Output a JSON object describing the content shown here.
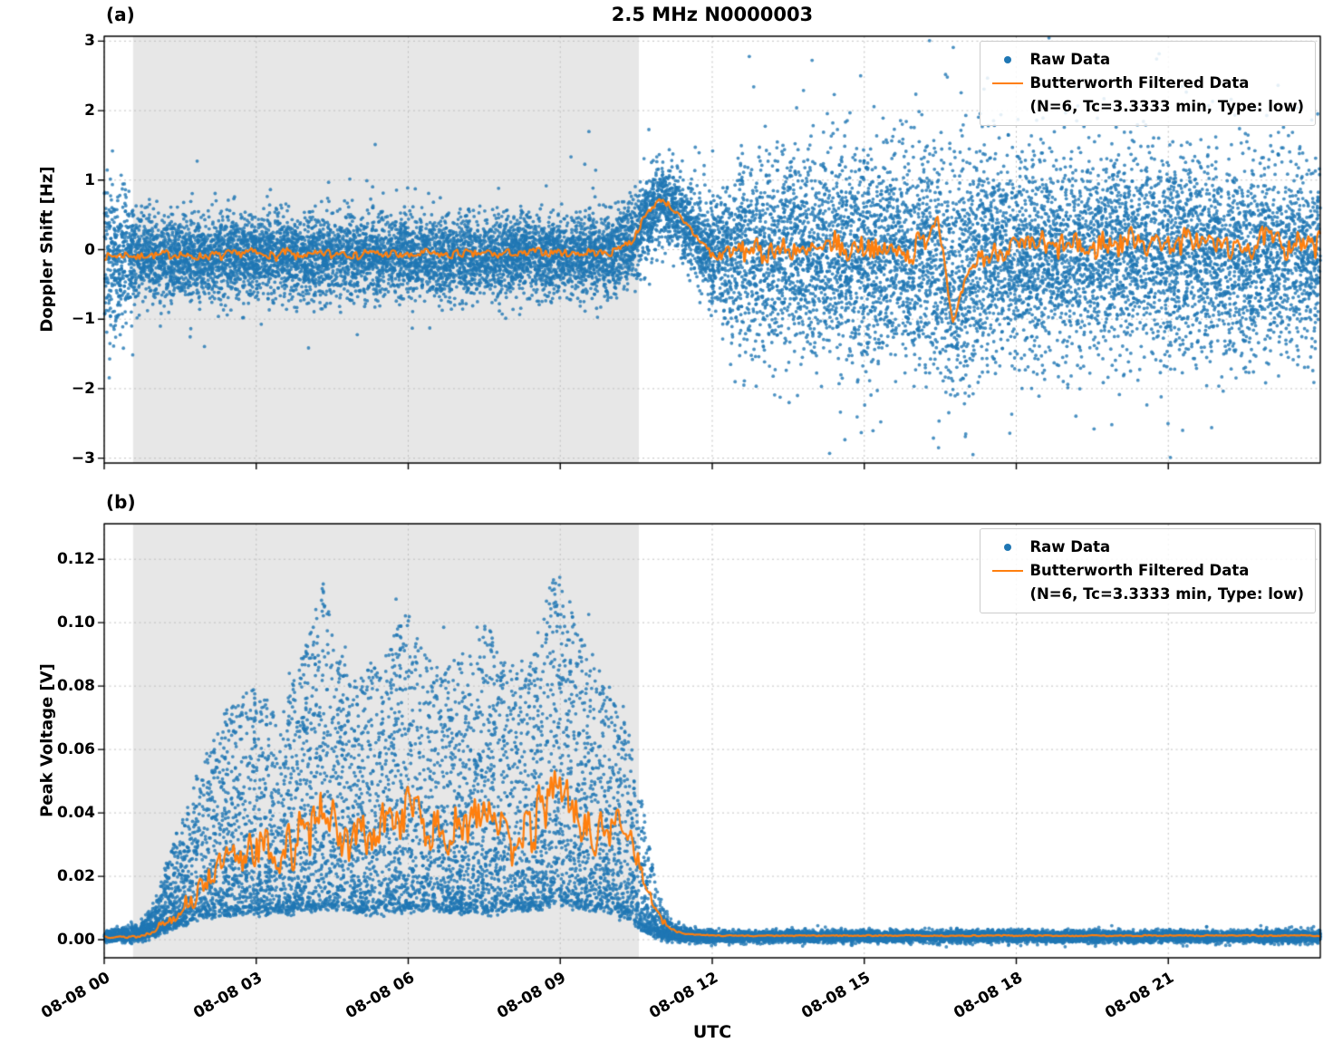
{
  "figure": {
    "title": "2.5 MHz N0000003",
    "xlabel": "UTC",
    "background": "#ffffff",
    "shade_color": "#e7e7e7",
    "grid_color": "#bbbbbb",
    "colors": {
      "raw": "#1f77b4",
      "filtered": "#ff7f0e"
    }
  },
  "legend": {
    "raw_label": "Raw Data",
    "filtered_label": "Butterworth Filtered Data",
    "filtered_sublabel": "(N=6, Tc=3.3333 min, Type: low)"
  },
  "chart_data": [
    {
      "panel": "(a)",
      "type": "scatter",
      "title": "2.5 MHz N0000003",
      "ylabel": "Doppler Shift [Hz]",
      "ylim": [
        -3,
        3
      ],
      "ylim_render": [
        -3.07,
        3.07
      ],
      "yticks": [
        -3,
        -2,
        -1,
        0,
        1,
        2,
        3
      ],
      "ytick_labels": [
        "−3",
        "−2",
        "−1",
        "0",
        "1",
        "2",
        "3"
      ],
      "xlim_hours": [
        0,
        24
      ],
      "xtick_hours": [
        0,
        3,
        6,
        9,
        12,
        15,
        18,
        21
      ],
      "xtick_labels": [
        "08-08 00",
        "08-08 03",
        "08-08 06",
        "08-08 09",
        "08-08 12",
        "08-08 15",
        "08-08 18",
        "08-08 21"
      ],
      "show_xtick_labels": false,
      "shade_hours": [
        0.57,
        10.55
      ],
      "grid": true,
      "legend_position": "upper right",
      "series": [
        {
          "name": "Raw Data",
          "style": "scatter",
          "color": "#1f77b4"
        },
        {
          "name": "Butterworth Filtered Data (N=6, Tc=3.3333 min, Type: low)",
          "style": "line",
          "color": "#ff7f0e"
        }
      ],
      "raw": {
        "model": "gauss",
        "seed": 101,
        "points": 16000,
        "hours": [
          0,
          0.3,
          0.6,
          1,
          2,
          3,
          4,
          5,
          6,
          7,
          8,
          9,
          10,
          10.4,
          10.7,
          11,
          11.2,
          11.5,
          11.8,
          12.1,
          12.5,
          13,
          14,
          15,
          16,
          16.4,
          16.75,
          17.1,
          17.5,
          18,
          19,
          20,
          21,
          22,
          23,
          24
        ],
        "center": [
          -0.2,
          -0.15,
          -0.1,
          -0.1,
          -0.1,
          -0.08,
          -0.1,
          -0.08,
          -0.1,
          -0.1,
          -0.08,
          -0.08,
          -0.05,
          0.1,
          0.45,
          0.7,
          0.6,
          0.4,
          0.05,
          -0.05,
          -0.1,
          -0.1,
          -0.1,
          -0.1,
          -0.1,
          -0.1,
          -0.4,
          -0.3,
          -0.15,
          -0.1,
          -0.1,
          -0.05,
          -0.05,
          -0.1,
          -0.1,
          -0.1
        ],
        "std": [
          0.6,
          0.5,
          0.35,
          0.3,
          0.3,
          0.28,
          0.3,
          0.28,
          0.28,
          0.28,
          0.28,
          0.28,
          0.3,
          0.3,
          0.3,
          0.28,
          0.3,
          0.3,
          0.32,
          0.4,
          0.6,
          0.7,
          0.72,
          0.72,
          0.72,
          0.85,
          0.88,
          0.8,
          0.75,
          0.72,
          0.7,
          0.7,
          0.72,
          0.7,
          0.7,
          0.7
        ]
      },
      "filtered": {
        "seeds": [
          7,
          11
        ],
        "hours": [
          0,
          1,
          2,
          3,
          4,
          5,
          6,
          7,
          8,
          9,
          10,
          10.4,
          10.7,
          11,
          11.2,
          11.5,
          11.8,
          12.1,
          12.5,
          13,
          14,
          15,
          16,
          16.2,
          16.45,
          16.6,
          16.75,
          17,
          17.3,
          17.6,
          18,
          19,
          20,
          21,
          22,
          23,
          24
        ],
        "center": [
          -0.1,
          -0.08,
          -0.08,
          -0.06,
          -0.08,
          -0.05,
          -0.07,
          -0.06,
          -0.05,
          -0.05,
          -0.03,
          0.12,
          0.5,
          0.72,
          0.6,
          0.35,
          0.05,
          -0.08,
          -0.05,
          0,
          0,
          0.02,
          0,
          0.1,
          0.45,
          -0.3,
          -1.05,
          -0.45,
          -0.05,
          0,
          0.05,
          0.05,
          0.1,
          0.15,
          0.05,
          0.1,
          0.05
        ],
        "wiggle": [
          0.07,
          0.07,
          0.08,
          0.08,
          0.08,
          0.08,
          0.07,
          0.07,
          0.07,
          0.07,
          0.06,
          0.06,
          0.06,
          0.05,
          0.07,
          0.08,
          0.1,
          0.12,
          0.18,
          0.2,
          0.22,
          0.22,
          0.2,
          0.18,
          0.12,
          0.1,
          0.06,
          0.1,
          0.18,
          0.2,
          0.2,
          0.22,
          0.22,
          0.2,
          0.2,
          0.2,
          0.2
        ]
      }
    },
    {
      "panel": "(b)",
      "type": "scatter",
      "ylabel": "Peak Voltage [V]",
      "ylim": [
        0,
        0.12
      ],
      "ylim_render": [
        -0.0057,
        0.1312
      ],
      "yticks": [
        0,
        0.02,
        0.04,
        0.06,
        0.08,
        0.1,
        0.12
      ],
      "ytick_labels": [
        "0.00",
        "0.02",
        "0.04",
        "0.06",
        "0.08",
        "0.10",
        "0.12"
      ],
      "xlim_hours": [
        0,
        24
      ],
      "xtick_hours": [
        0,
        3,
        6,
        9,
        12,
        15,
        18,
        21
      ],
      "xtick_labels": [
        "08-08 00",
        "08-08 03",
        "08-08 06",
        "08-08 09",
        "08-08 12",
        "08-08 15",
        "08-08 18",
        "08-08 21"
      ],
      "show_xtick_labels": true,
      "shade_hours": [
        0.57,
        10.55
      ],
      "grid": true,
      "legend_position": "upper right",
      "series": [
        {
          "name": "Raw Data",
          "style": "scatter",
          "color": "#1f77b4"
        },
        {
          "name": "Butterworth Filtered Data (N=6, Tc=3.3333 min, Type: low)",
          "style": "line",
          "color": "#ff7f0e"
        }
      ],
      "raw": {
        "model": "skew",
        "seed": 202,
        "points": 15000,
        "hours": [
          0,
          0.7,
          1,
          1.3,
          1.7,
          2,
          2.5,
          3,
          3.5,
          4,
          4.3,
          4.6,
          5,
          5.5,
          6,
          6.5,
          7,
          7.5,
          8,
          8.5,
          8.9,
          9.2,
          9.6,
          10,
          10.3,
          10.6,
          10.9,
          11.2,
          11.5,
          12,
          24
        ],
        "lo": [
          0.0005,
          0.0008,
          0.002,
          0.004,
          0.006,
          0.008,
          0.008,
          0.009,
          0.009,
          0.01,
          0.01,
          0.01,
          0.009,
          0.009,
          0.01,
          0.01,
          0.009,
          0.009,
          0.01,
          0.01,
          0.012,
          0.011,
          0.01,
          0.009,
          0.008,
          0.004,
          0.0015,
          0.0008,
          0.0006,
          0.0005,
          0.0005
        ],
        "hi": [
          0.002,
          0.004,
          0.012,
          0.028,
          0.045,
          0.06,
          0.075,
          0.08,
          0.07,
          0.095,
          0.115,
          0.09,
          0.085,
          0.09,
          0.105,
          0.085,
          0.09,
          0.1,
          0.085,
          0.095,
          0.12,
          0.105,
          0.09,
          0.08,
          0.07,
          0.045,
          0.015,
          0.005,
          0.003,
          0.002,
          0.002
        ]
      },
      "filtered": {
        "seeds": [
          13,
          17
        ],
        "hours": [
          0,
          0.7,
          1,
          1.3,
          1.7,
          2,
          2.5,
          3,
          3.5,
          4,
          4.3,
          4.6,
          5,
          5.5,
          6,
          6.5,
          7,
          7.5,
          8,
          8.5,
          8.9,
          9.2,
          9.6,
          10,
          10.3,
          10.6,
          10.9,
          11.2,
          11.5,
          12,
          24
        ],
        "center": [
          0.001,
          0.001,
          0.003,
          0.007,
          0.012,
          0.018,
          0.026,
          0.03,
          0.027,
          0.034,
          0.046,
          0.032,
          0.031,
          0.035,
          0.042,
          0.032,
          0.035,
          0.042,
          0.031,
          0.036,
          0.052,
          0.044,
          0.032,
          0.034,
          0.038,
          0.022,
          0.008,
          0.003,
          0.0018,
          0.0013,
          0.0013
        ],
        "wiggle": [
          0.0004,
          0.0005,
          0.001,
          0.002,
          0.004,
          0.005,
          0.007,
          0.008,
          0.007,
          0.009,
          0.009,
          0.008,
          0.008,
          0.008,
          0.009,
          0.008,
          0.008,
          0.009,
          0.008,
          0.008,
          0.009,
          0.008,
          0.007,
          0.007,
          0.006,
          0.004,
          0.002,
          0.0006,
          0.0003,
          0.0002,
          0.0002
        ]
      }
    }
  ]
}
